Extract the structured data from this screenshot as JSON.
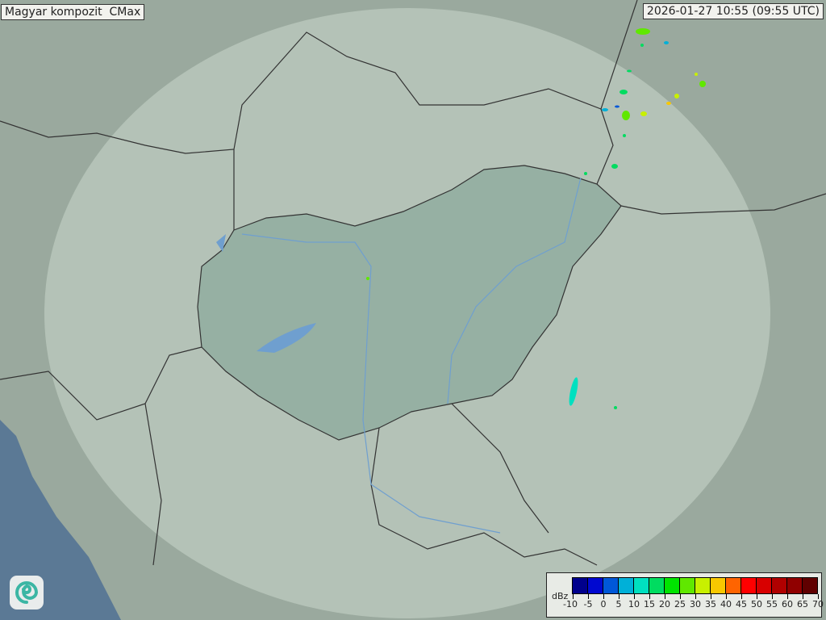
{
  "title": "Magyar kompozit  CMax",
  "timestamp": "2026-01-27 10:55 (09:55 UTC)",
  "legend": {
    "unit": "dBz",
    "ticks": [
      "-10",
      "-5",
      "0",
      "5",
      "10",
      "15",
      "20",
      "25",
      "30",
      "35",
      "40",
      "45",
      "50",
      "55",
      "60",
      "65",
      "70"
    ],
    "colors": [
      "#00008c",
      "#0008d0",
      "#0058d8",
      "#00b0d8",
      "#00e0c0",
      "#00dc60",
      "#00e400",
      "#60e800",
      "#c8f000",
      "#f8c800",
      "#ff6400",
      "#ff0000",
      "#d80000",
      "#b00000",
      "#900000",
      "#600000"
    ]
  },
  "logo": "swirl-logo-icon",
  "colors": {
    "sea": "#5b7995",
    "land": "#9aa99e",
    "radar_coverage": "#b9c9bd",
    "hungary": "#8fab9e",
    "borders": "#333333",
    "rivers": "#6f9fcf"
  }
}
